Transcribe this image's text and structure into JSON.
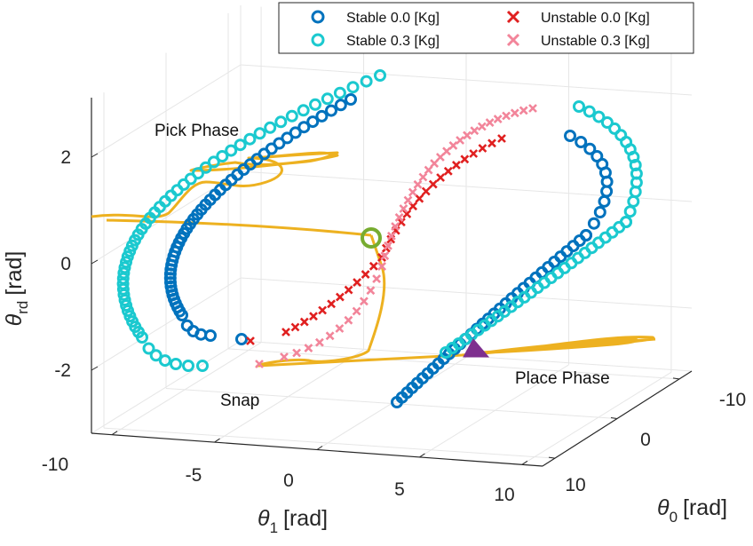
{
  "chart_data": {
    "type": "scatter",
    "projection": "3d",
    "axes": {
      "x": {
        "symbol": "θ",
        "subscript": "1",
        "unit": "[rad]",
        "ticks": [
          -10,
          -5,
          0,
          5,
          10
        ]
      },
      "y": {
        "symbol": "θ",
        "subscript": "0",
        "unit": "[rad]",
        "ticks": [
          -10,
          0,
          10
        ]
      },
      "z": {
        "symbol": "θ",
        "subscript": "rd",
        "unit": "[rad]",
        "ticks": [
          -2,
          0,
          2
        ]
      }
    },
    "grid": true,
    "legend_position": "top-right",
    "colors": {
      "stable_0": "#0072BD",
      "stable_03": "#1BC9CF",
      "unstable_0": "#E02020",
      "unstable_03": "#F2859A",
      "trajectory": "#EDB120",
      "start_marker": "#77AC30",
      "end_marker": "#7E2F8E",
      "axis": "#262626",
      "grid": "#e6e6e6"
    },
    "series": [
      {
        "name": "Stable 0.0 [Kg]",
        "marker": "o"
      },
      {
        "name": "Stable 0.3 [Kg]",
        "marker": "o"
      },
      {
        "name": "Unstable 0.0 [Kg]",
        "marker": "x"
      },
      {
        "name": "Unstable 0.3 [Kg]",
        "marker": "x"
      }
    ],
    "annotations": {
      "pick": "Pick Phase",
      "snap": "Snap",
      "place": "Place Phase"
    }
  }
}
